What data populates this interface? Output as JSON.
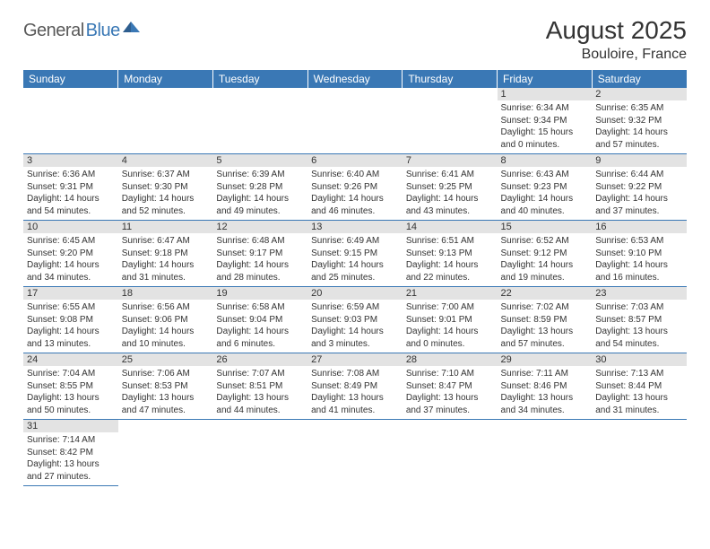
{
  "logo": {
    "part1": "General",
    "part2": "Blue"
  },
  "title": "August 2025",
  "location": "Bouloire, France",
  "colors": {
    "header_bg": "#3a78b5",
    "header_text": "#ffffff",
    "daynum_bg": "#e3e3e3",
    "border": "#3a78b5",
    "text": "#333333",
    "logo_gray": "#5a5a5a",
    "logo_blue": "#3a78b5",
    "page_bg": "#ffffff"
  },
  "day_headers": [
    "Sunday",
    "Monday",
    "Tuesday",
    "Wednesday",
    "Thursday",
    "Friday",
    "Saturday"
  ],
  "weeks": [
    [
      null,
      null,
      null,
      null,
      null,
      {
        "n": "1",
        "sunrise": "Sunrise: 6:34 AM",
        "sunset": "Sunset: 9:34 PM",
        "day1": "Daylight: 15 hours",
        "day2": "and 0 minutes."
      },
      {
        "n": "2",
        "sunrise": "Sunrise: 6:35 AM",
        "sunset": "Sunset: 9:32 PM",
        "day1": "Daylight: 14 hours",
        "day2": "and 57 minutes."
      }
    ],
    [
      {
        "n": "3",
        "sunrise": "Sunrise: 6:36 AM",
        "sunset": "Sunset: 9:31 PM",
        "day1": "Daylight: 14 hours",
        "day2": "and 54 minutes."
      },
      {
        "n": "4",
        "sunrise": "Sunrise: 6:37 AM",
        "sunset": "Sunset: 9:30 PM",
        "day1": "Daylight: 14 hours",
        "day2": "and 52 minutes."
      },
      {
        "n": "5",
        "sunrise": "Sunrise: 6:39 AM",
        "sunset": "Sunset: 9:28 PM",
        "day1": "Daylight: 14 hours",
        "day2": "and 49 minutes."
      },
      {
        "n": "6",
        "sunrise": "Sunrise: 6:40 AM",
        "sunset": "Sunset: 9:26 PM",
        "day1": "Daylight: 14 hours",
        "day2": "and 46 minutes."
      },
      {
        "n": "7",
        "sunrise": "Sunrise: 6:41 AM",
        "sunset": "Sunset: 9:25 PM",
        "day1": "Daylight: 14 hours",
        "day2": "and 43 minutes."
      },
      {
        "n": "8",
        "sunrise": "Sunrise: 6:43 AM",
        "sunset": "Sunset: 9:23 PM",
        "day1": "Daylight: 14 hours",
        "day2": "and 40 minutes."
      },
      {
        "n": "9",
        "sunrise": "Sunrise: 6:44 AM",
        "sunset": "Sunset: 9:22 PM",
        "day1": "Daylight: 14 hours",
        "day2": "and 37 minutes."
      }
    ],
    [
      {
        "n": "10",
        "sunrise": "Sunrise: 6:45 AM",
        "sunset": "Sunset: 9:20 PM",
        "day1": "Daylight: 14 hours",
        "day2": "and 34 minutes."
      },
      {
        "n": "11",
        "sunrise": "Sunrise: 6:47 AM",
        "sunset": "Sunset: 9:18 PM",
        "day1": "Daylight: 14 hours",
        "day2": "and 31 minutes."
      },
      {
        "n": "12",
        "sunrise": "Sunrise: 6:48 AM",
        "sunset": "Sunset: 9:17 PM",
        "day1": "Daylight: 14 hours",
        "day2": "and 28 minutes."
      },
      {
        "n": "13",
        "sunrise": "Sunrise: 6:49 AM",
        "sunset": "Sunset: 9:15 PM",
        "day1": "Daylight: 14 hours",
        "day2": "and 25 minutes."
      },
      {
        "n": "14",
        "sunrise": "Sunrise: 6:51 AM",
        "sunset": "Sunset: 9:13 PM",
        "day1": "Daylight: 14 hours",
        "day2": "and 22 minutes."
      },
      {
        "n": "15",
        "sunrise": "Sunrise: 6:52 AM",
        "sunset": "Sunset: 9:12 PM",
        "day1": "Daylight: 14 hours",
        "day2": "and 19 minutes."
      },
      {
        "n": "16",
        "sunrise": "Sunrise: 6:53 AM",
        "sunset": "Sunset: 9:10 PM",
        "day1": "Daylight: 14 hours",
        "day2": "and 16 minutes."
      }
    ],
    [
      {
        "n": "17",
        "sunrise": "Sunrise: 6:55 AM",
        "sunset": "Sunset: 9:08 PM",
        "day1": "Daylight: 14 hours",
        "day2": "and 13 minutes."
      },
      {
        "n": "18",
        "sunrise": "Sunrise: 6:56 AM",
        "sunset": "Sunset: 9:06 PM",
        "day1": "Daylight: 14 hours",
        "day2": "and 10 minutes."
      },
      {
        "n": "19",
        "sunrise": "Sunrise: 6:58 AM",
        "sunset": "Sunset: 9:04 PM",
        "day1": "Daylight: 14 hours",
        "day2": "and 6 minutes."
      },
      {
        "n": "20",
        "sunrise": "Sunrise: 6:59 AM",
        "sunset": "Sunset: 9:03 PM",
        "day1": "Daylight: 14 hours",
        "day2": "and 3 minutes."
      },
      {
        "n": "21",
        "sunrise": "Sunrise: 7:00 AM",
        "sunset": "Sunset: 9:01 PM",
        "day1": "Daylight: 14 hours",
        "day2": "and 0 minutes."
      },
      {
        "n": "22",
        "sunrise": "Sunrise: 7:02 AM",
        "sunset": "Sunset: 8:59 PM",
        "day1": "Daylight: 13 hours",
        "day2": "and 57 minutes."
      },
      {
        "n": "23",
        "sunrise": "Sunrise: 7:03 AM",
        "sunset": "Sunset: 8:57 PM",
        "day1": "Daylight: 13 hours",
        "day2": "and 54 minutes."
      }
    ],
    [
      {
        "n": "24",
        "sunrise": "Sunrise: 7:04 AM",
        "sunset": "Sunset: 8:55 PM",
        "day1": "Daylight: 13 hours",
        "day2": "and 50 minutes."
      },
      {
        "n": "25",
        "sunrise": "Sunrise: 7:06 AM",
        "sunset": "Sunset: 8:53 PM",
        "day1": "Daylight: 13 hours",
        "day2": "and 47 minutes."
      },
      {
        "n": "26",
        "sunrise": "Sunrise: 7:07 AM",
        "sunset": "Sunset: 8:51 PM",
        "day1": "Daylight: 13 hours",
        "day2": "and 44 minutes."
      },
      {
        "n": "27",
        "sunrise": "Sunrise: 7:08 AM",
        "sunset": "Sunset: 8:49 PM",
        "day1": "Daylight: 13 hours",
        "day2": "and 41 minutes."
      },
      {
        "n": "28",
        "sunrise": "Sunrise: 7:10 AM",
        "sunset": "Sunset: 8:47 PM",
        "day1": "Daylight: 13 hours",
        "day2": "and 37 minutes."
      },
      {
        "n": "29",
        "sunrise": "Sunrise: 7:11 AM",
        "sunset": "Sunset: 8:46 PM",
        "day1": "Daylight: 13 hours",
        "day2": "and 34 minutes."
      },
      {
        "n": "30",
        "sunrise": "Sunrise: 7:13 AM",
        "sunset": "Sunset: 8:44 PM",
        "day1": "Daylight: 13 hours",
        "day2": "and 31 minutes."
      }
    ],
    [
      {
        "n": "31",
        "sunrise": "Sunrise: 7:14 AM",
        "sunset": "Sunset: 8:42 PM",
        "day1": "Daylight: 13 hours",
        "day2": "and 27 minutes."
      },
      null,
      null,
      null,
      null,
      null,
      null
    ]
  ]
}
